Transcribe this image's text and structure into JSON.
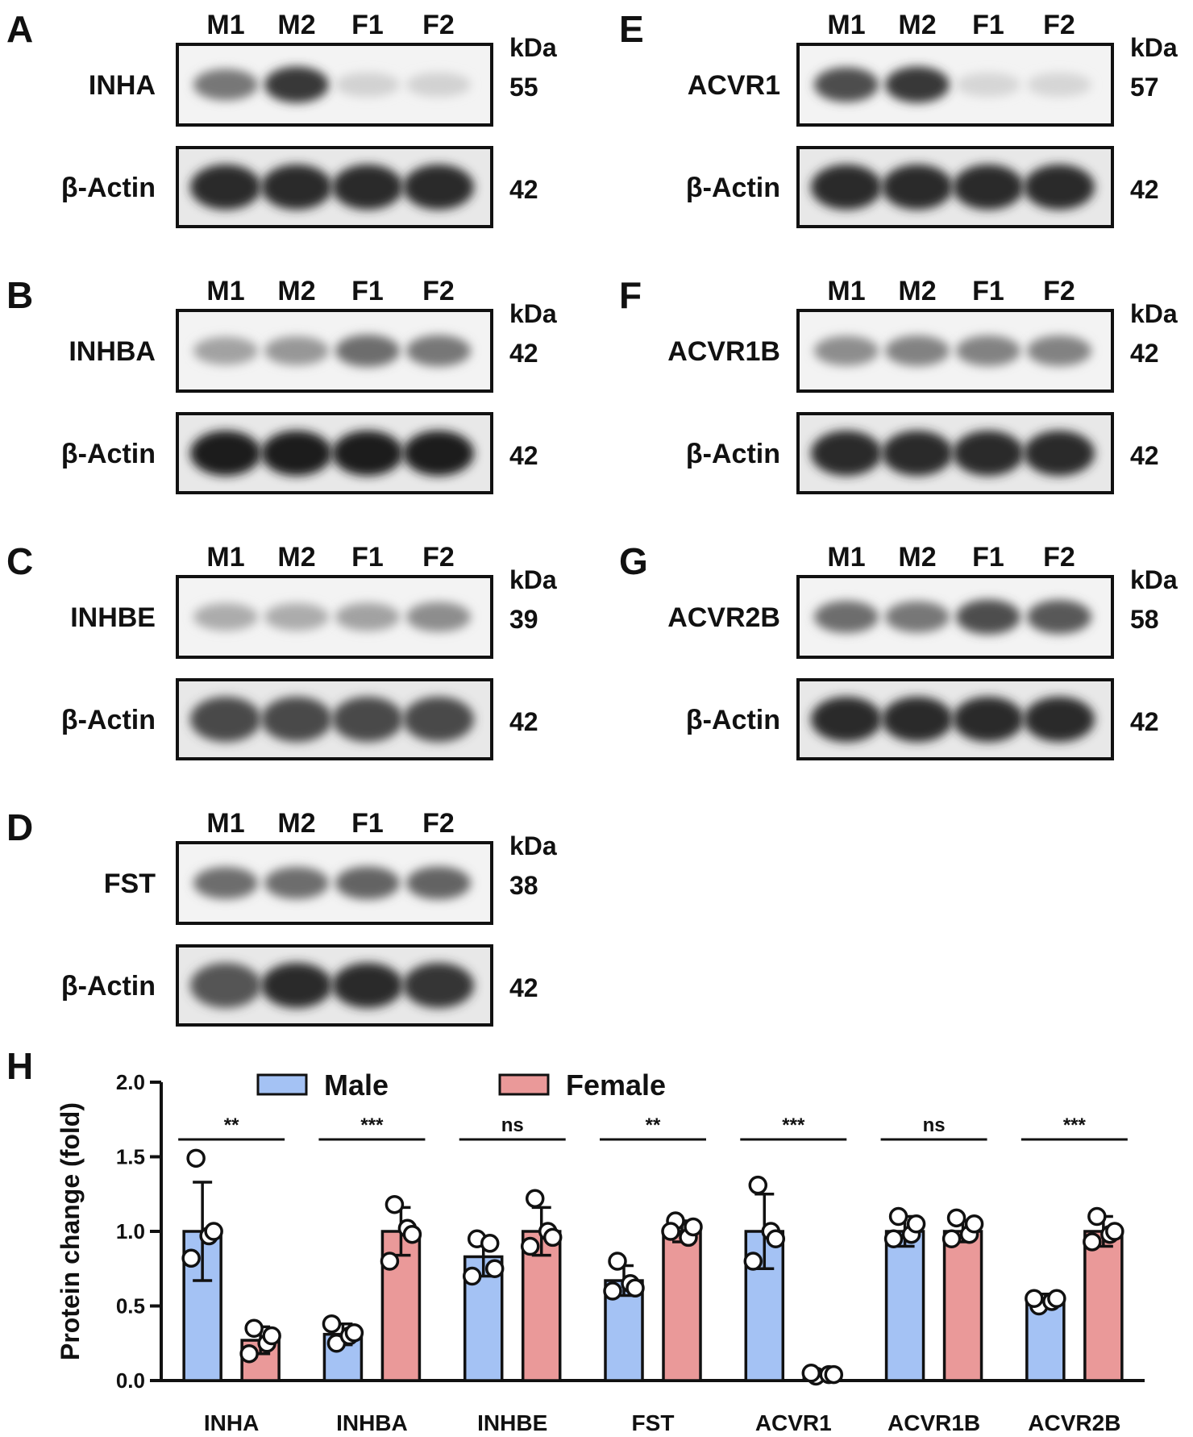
{
  "blots": [
    {
      "letter": "A",
      "protein": "INHA",
      "kda_label": "kDa",
      "kda": "55",
      "actin_label": "β-Actin",
      "actin_kda": "42",
      "lanes": [
        "M1",
        "M2",
        "F1",
        "F2"
      ],
      "intensity": [
        0.55,
        0.85,
        0.12,
        0.12
      ],
      "actin_intensity": [
        0.9,
        0.9,
        0.9,
        0.9
      ]
    },
    {
      "letter": "B",
      "protein": "INHBA",
      "kda_label": "kDa",
      "kda": "42",
      "actin_label": "β-Actin",
      "actin_kda": "42",
      "lanes": [
        "M1",
        "M2",
        "F1",
        "F2"
      ],
      "intensity": [
        0.35,
        0.4,
        0.6,
        0.55
      ],
      "actin_intensity": [
        0.95,
        0.95,
        0.95,
        0.95
      ]
    },
    {
      "letter": "C",
      "protein": "INHBE",
      "kda_label": "kDa",
      "kda": "39",
      "actin_label": "β-Actin",
      "actin_kda": "42",
      "lanes": [
        "M1",
        "M2",
        "F1",
        "F2"
      ],
      "intensity": [
        0.3,
        0.3,
        0.35,
        0.45
      ],
      "actin_intensity": [
        0.75,
        0.75,
        0.75,
        0.75
      ]
    },
    {
      "letter": "D",
      "protein": "FST",
      "kda_label": "kDa",
      "kda": "38",
      "actin_label": "β-Actin",
      "actin_kda": "42",
      "lanes": [
        "M1",
        "M2",
        "F1",
        "F2"
      ],
      "intensity": [
        0.6,
        0.6,
        0.65,
        0.65
      ],
      "actin_intensity": [
        0.7,
        0.9,
        0.9,
        0.85
      ]
    },
    {
      "letter": "E",
      "protein": "ACVR1",
      "kda_label": "kDa",
      "kda": "57",
      "actin_label": "β-Actin",
      "actin_kda": "42",
      "lanes": [
        "M1",
        "M2",
        "F1",
        "F2"
      ],
      "intensity": [
        0.75,
        0.85,
        0.1,
        0.1
      ],
      "actin_intensity": [
        0.9,
        0.9,
        0.9,
        0.9
      ]
    },
    {
      "letter": "F",
      "protein": "ACVR1B",
      "kda_label": "kDa",
      "kda": "42",
      "actin_label": "β-Actin",
      "actin_kda": "42",
      "lanes": [
        "M1",
        "M2",
        "F1",
        "F2"
      ],
      "intensity": [
        0.45,
        0.5,
        0.5,
        0.5
      ],
      "actin_intensity": [
        0.9,
        0.9,
        0.9,
        0.9
      ]
    },
    {
      "letter": "G",
      "protein": "ACVR2B",
      "kda_label": "kDa",
      "kda": "58",
      "actin_label": "β-Actin",
      "actin_kda": "42",
      "lanes": [
        "M1",
        "M2",
        "F1",
        "F2"
      ],
      "intensity": [
        0.6,
        0.55,
        0.75,
        0.7
      ],
      "actin_intensity": [
        0.9,
        0.9,
        0.9,
        0.9
      ]
    }
  ],
  "chart_data": {
    "type": "bar",
    "panel_letter": "H",
    "ylabel": "Protein change (fold)",
    "ylim": [
      0,
      2.0
    ],
    "yticks": [
      "0.0",
      "0.5",
      "1.0",
      "1.5",
      "2.0"
    ],
    "legend_position": "top",
    "categories": [
      "INHA",
      "INHBA",
      "INHBE",
      "FST",
      "ACVR1",
      "ACVR1B",
      "ACVR2B"
    ],
    "series": [
      {
        "name": "Male",
        "color": "#a4c2f4",
        "values": [
          1.0,
          0.31,
          0.83,
          0.67,
          1.0,
          1.0,
          0.54
        ],
        "errors": [
          0.33,
          0.07,
          0.13,
          0.1,
          0.25,
          0.1,
          0.04
        ],
        "points": [
          [
            1.49,
            0.97,
            0.82,
            1.0
          ],
          [
            0.25,
            0.3,
            0.38,
            0.32
          ],
          [
            0.95,
            0.92,
            0.7,
            0.75
          ],
          [
            0.8,
            0.65,
            0.6,
            0.62
          ],
          [
            1.31,
            1.0,
            0.8,
            0.95
          ],
          [
            1.1,
            0.98,
            0.95,
            1.05
          ],
          [
            0.5,
            0.53,
            0.55,
            0.55
          ]
        ]
      },
      {
        "name": "Female",
        "color": "#ea9999",
        "values": [
          0.27,
          1.0,
          1.0,
          1.0,
          0.04,
          1.0,
          1.0
        ],
        "errors": [
          0.09,
          0.16,
          0.16,
          0.07,
          0.01,
          0.07,
          0.1
        ],
        "points": [
          [
            0.35,
            0.25,
            0.18,
            0.3
          ],
          [
            1.18,
            1.02,
            0.8,
            0.98
          ],
          [
            1.22,
            1.0,
            0.9,
            0.96
          ],
          [
            1.07,
            0.96,
            1.0,
            1.03
          ],
          [
            0.03,
            0.04,
            0.05,
            0.04
          ],
          [
            1.09,
            0.98,
            0.95,
            1.05
          ],
          [
            1.1,
            0.98,
            0.93,
            1.0
          ]
        ]
      }
    ],
    "significance": [
      "**",
      "***",
      "ns",
      "**",
      "***",
      "ns",
      "***"
    ]
  }
}
